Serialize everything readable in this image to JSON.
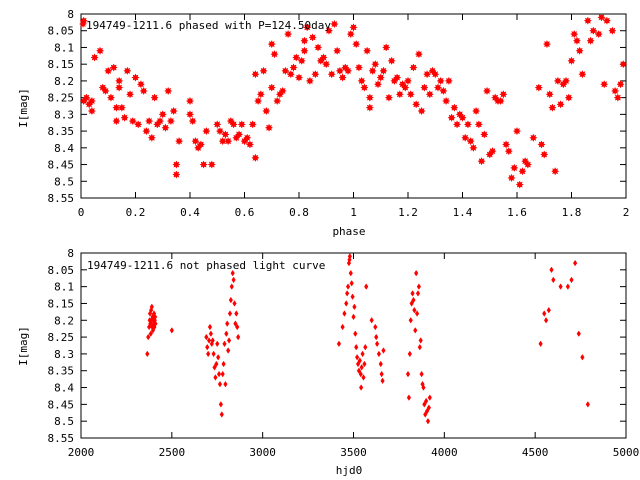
{
  "colors": {
    "data": "#ff0000",
    "axis": "#000000",
    "background": "#ffffff"
  },
  "chart_data": [
    {
      "type": "scatter",
      "title": "194749-1211.6 phased with P=124.50day",
      "xlabel": "phase",
      "ylabel": "I[mag]",
      "xlim": [
        0,
        2
      ],
      "ylim": [
        8.55,
        8.0
      ],
      "y_inverted": true,
      "grid": false,
      "legend": "none",
      "marker": "star",
      "x_ticks": [
        "0",
        "0.2",
        "0.4",
        "0.6",
        "0.8",
        "1",
        "1.2",
        "1.4",
        "1.6",
        "1.8",
        "2"
      ],
      "y_ticks": [
        "8",
        "8.05",
        "8.1",
        "8.15",
        "8.2",
        "8.25",
        "8.3",
        "8.35",
        "8.4",
        "8.45",
        "8.5",
        "8.55"
      ],
      "points": [
        [
          0.01,
          8.02
        ],
        [
          0.01,
          8.26
        ],
        [
          0.02,
          8.25
        ],
        [
          0.03,
          8.27
        ],
        [
          0.04,
          8.26
        ],
        [
          0.04,
          8.29
        ],
        [
          0.05,
          8.13
        ],
        [
          0.07,
          8.11
        ],
        [
          0.08,
          8.22
        ],
        [
          0.09,
          8.23
        ],
        [
          0.1,
          8.17
        ],
        [
          0.11,
          8.25
        ],
        [
          0.12,
          8.16
        ],
        [
          0.13,
          8.28
        ],
        [
          0.13,
          8.32
        ],
        [
          0.14,
          8.22
        ],
        [
          0.14,
          8.2
        ],
        [
          0.15,
          8.28
        ],
        [
          0.16,
          8.31
        ],
        [
          0.17,
          8.17
        ],
        [
          0.18,
          8.24
        ],
        [
          0.19,
          8.32
        ],
        [
          0.2,
          8.19
        ],
        [
          0.21,
          8.33
        ],
        [
          0.22,
          8.21
        ],
        [
          0.23,
          8.23
        ],
        [
          0.24,
          8.35
        ],
        [
          0.25,
          8.32
        ],
        [
          0.26,
          8.37
        ],
        [
          0.27,
          8.25
        ],
        [
          0.28,
          8.33
        ],
        [
          0.29,
          8.32
        ],
        [
          0.3,
          8.3
        ],
        [
          0.31,
          8.34
        ],
        [
          0.32,
          8.23
        ],
        [
          0.33,
          8.32
        ],
        [
          0.34,
          8.29
        ],
        [
          0.35,
          8.45
        ],
        [
          0.35,
          8.48
        ],
        [
          0.36,
          8.38
        ],
        [
          0.4,
          8.26
        ],
        [
          0.4,
          8.3
        ],
        [
          0.41,
          8.32
        ],
        [
          0.42,
          8.38
        ],
        [
          0.43,
          8.4
        ],
        [
          0.44,
          8.39
        ],
        [
          0.45,
          8.45
        ],
        [
          0.46,
          8.35
        ],
        [
          0.48,
          8.45
        ],
        [
          0.5,
          8.33
        ],
        [
          0.51,
          8.35
        ],
        [
          0.52,
          8.38
        ],
        [
          0.53,
          8.36
        ],
        [
          0.54,
          8.38
        ],
        [
          0.55,
          8.32
        ],
        [
          0.56,
          8.33
        ],
        [
          0.57,
          8.37
        ],
        [
          0.58,
          8.36
        ],
        [
          0.59,
          8.33
        ],
        [
          0.6,
          8.38
        ],
        [
          0.61,
          8.37
        ],
        [
          0.62,
          8.39
        ],
        [
          0.63,
          8.33
        ],
        [
          0.64,
          8.43
        ],
        [
          0.64,
          8.18
        ],
        [
          0.65,
          8.26
        ],
        [
          0.66,
          8.24
        ],
        [
          0.67,
          8.17
        ],
        [
          0.68,
          8.29
        ],
        [
          0.69,
          8.34
        ],
        [
          0.7,
          8.22
        ],
        [
          0.7,
          8.09
        ],
        [
          0.71,
          8.12
        ],
        [
          0.72,
          8.26
        ],
        [
          0.73,
          8.24
        ],
        [
          0.74,
          8.23
        ],
        [
          0.75,
          8.17
        ],
        [
          0.76,
          8.06
        ],
        [
          0.77,
          8.18
        ],
        [
          0.78,
          8.16
        ],
        [
          0.79,
          8.13
        ],
        [
          0.8,
          8.19
        ],
        [
          0.81,
          8.14
        ],
        [
          0.82,
          8.08
        ],
        [
          0.82,
          8.11
        ],
        [
          0.83,
          8.04
        ],
        [
          0.84,
          8.2
        ],
        [
          0.85,
          8.07
        ],
        [
          0.86,
          8.18
        ],
        [
          0.87,
          8.1
        ],
        [
          0.88,
          8.14
        ],
        [
          0.89,
          8.13
        ],
        [
          0.9,
          8.15
        ],
        [
          0.91,
          8.05
        ],
        [
          0.92,
          8.18
        ],
        [
          0.93,
          8.03
        ],
        [
          0.94,
          8.11
        ],
        [
          0.95,
          8.17
        ],
        [
          0.96,
          8.19
        ],
        [
          0.97,
          8.16
        ],
        [
          0.98,
          8.17
        ],
        [
          0.99,
          8.06
        ],
        [
          1.0,
          8.04
        ],
        [
          1.01,
          8.09
        ],
        [
          1.02,
          8.16
        ],
        [
          1.03,
          8.2
        ],
        [
          1.04,
          8.22
        ],
        [
          1.05,
          8.11
        ],
        [
          1.06,
          8.25
        ],
        [
          1.06,
          8.28
        ],
        [
          1.07,
          8.17
        ],
        [
          1.08,
          8.15
        ],
        [
          1.09,
          8.21
        ],
        [
          1.1,
          8.19
        ],
        [
          1.11,
          8.17
        ],
        [
          1.12,
          8.1
        ],
        [
          1.13,
          8.25
        ],
        [
          1.14,
          8.14
        ],
        [
          1.15,
          8.2
        ],
        [
          1.16,
          8.19
        ],
        [
          1.17,
          8.24
        ],
        [
          1.18,
          8.21
        ],
        [
          1.19,
          8.22
        ],
        [
          1.2,
          8.2
        ],
        [
          1.21,
          8.24
        ],
        [
          1.22,
          8.16
        ],
        [
          1.23,
          8.27
        ],
        [
          1.24,
          8.12
        ],
        [
          1.25,
          8.29
        ],
        [
          1.26,
          8.22
        ],
        [
          1.27,
          8.18
        ],
        [
          1.28,
          8.24
        ],
        [
          1.29,
          8.17
        ],
        [
          1.3,
          8.18
        ],
        [
          1.31,
          8.22
        ],
        [
          1.32,
          8.2
        ],
        [
          1.33,
          8.23
        ],
        [
          1.34,
          8.26
        ],
        [
          1.35,
          8.2
        ],
        [
          1.36,
          8.31
        ],
        [
          1.37,
          8.28
        ],
        [
          1.38,
          8.33
        ],
        [
          1.39,
          8.3
        ],
        [
          1.4,
          8.31
        ],
        [
          1.41,
          8.37
        ],
        [
          1.42,
          8.33
        ],
        [
          1.43,
          8.38
        ],
        [
          1.44,
          8.4
        ],
        [
          1.45,
          8.29
        ],
        [
          1.46,
          8.33
        ],
        [
          1.47,
          8.44
        ],
        [
          1.48,
          8.36
        ],
        [
          1.49,
          8.23
        ],
        [
          1.5,
          8.42
        ],
        [
          1.51,
          8.41
        ],
        [
          1.52,
          8.25
        ],
        [
          1.53,
          8.26
        ],
        [
          1.54,
          8.26
        ],
        [
          1.55,
          8.24
        ],
        [
          1.56,
          8.39
        ],
        [
          1.57,
          8.41
        ],
        [
          1.58,
          8.49
        ],
        [
          1.59,
          8.46
        ],
        [
          1.6,
          8.35
        ],
        [
          1.61,
          8.51
        ],
        [
          1.62,
          8.47
        ],
        [
          1.63,
          8.44
        ],
        [
          1.64,
          8.45
        ],
        [
          1.66,
          8.37
        ],
        [
          1.68,
          8.22
        ],
        [
          1.69,
          8.39
        ],
        [
          1.7,
          8.42
        ],
        [
          1.71,
          8.09
        ],
        [
          1.72,
          8.24
        ],
        [
          1.73,
          8.28
        ],
        [
          1.74,
          8.47
        ],
        [
          1.75,
          8.2
        ],
        [
          1.76,
          8.27
        ],
        [
          1.77,
          8.21
        ],
        [
          1.78,
          8.2
        ],
        [
          1.79,
          8.25
        ],
        [
          1.8,
          8.14
        ],
        [
          1.81,
          8.06
        ],
        [
          1.82,
          8.08
        ],
        [
          1.83,
          8.11
        ],
        [
          1.84,
          8.18
        ],
        [
          1.86,
          8.02
        ],
        [
          1.87,
          8.08
        ],
        [
          1.88,
          8.05
        ],
        [
          1.9,
          8.06
        ],
        [
          1.91,
          8.01
        ],
        [
          1.92,
          8.21
        ],
        [
          1.93,
          8.02
        ],
        [
          1.95,
          8.05
        ],
        [
          1.96,
          8.23
        ],
        [
          1.97,
          8.25
        ],
        [
          1.98,
          8.21
        ],
        [
          1.99,
          8.15
        ]
      ]
    },
    {
      "type": "scatter",
      "title": "194749-1211.6 not phased light curve",
      "xlabel": "hjd0",
      "ylabel": "I[mag]",
      "xlim": [
        2000,
        5000
      ],
      "ylim": [
        8.55,
        8.0
      ],
      "y_inverted": true,
      "grid": false,
      "legend": "none",
      "marker": "diamond",
      "x_ticks": [
        "2000",
        "2500",
        "3000",
        "3500",
        "4000",
        "4500",
        "5000"
      ],
      "y_ticks": [
        "8",
        "8.05",
        "8.1",
        "8.15",
        "8.2",
        "8.25",
        "8.3",
        "8.35",
        "8.4",
        "8.45",
        "8.5",
        "8.55"
      ],
      "points": [
        [
          2365,
          8.3
        ],
        [
          2370,
          8.25
        ],
        [
          2375,
          8.22
        ],
        [
          2378,
          8.2
        ],
        [
          2380,
          8.18
        ],
        [
          2382,
          8.21
        ],
        [
          2384,
          8.24
        ],
        [
          2386,
          8.17
        ],
        [
          2388,
          8.2
        ],
        [
          2390,
          8.16
        ],
        [
          2392,
          8.22
        ],
        [
          2394,
          8.19
        ],
        [
          2396,
          8.23
        ],
        [
          2398,
          8.2
        ],
        [
          2400,
          8.21
        ],
        [
          2402,
          8.18
        ],
        [
          2404,
          8.22
        ],
        [
          2406,
          8.2
        ],
        [
          2408,
          8.19
        ],
        [
          2410,
          8.21
        ],
        [
          2500,
          8.23
        ],
        [
          2690,
          8.25
        ],
        [
          2695,
          8.28
        ],
        [
          2700,
          8.3
        ],
        [
          2705,
          8.26
        ],
        [
          2710,
          8.22
        ],
        [
          2715,
          8.24
        ],
        [
          2720,
          8.27
        ],
        [
          2725,
          8.26
        ],
        [
          2730,
          8.3
        ],
        [
          2735,
          8.34
        ],
        [
          2740,
          8.37
        ],
        [
          2745,
          8.33
        ],
        [
          2750,
          8.27
        ],
        [
          2755,
          8.31
        ],
        [
          2760,
          8.36
        ],
        [
          2765,
          8.39
        ],
        [
          2770,
          8.45
        ],
        [
          2775,
          8.48
        ],
        [
          2780,
          8.36
        ],
        [
          2785,
          8.33
        ],
        [
          2790,
          8.27
        ],
        [
          2795,
          8.39
        ],
        [
          2800,
          8.24
        ],
        [
          2805,
          8.21
        ],
        [
          2810,
          8.29
        ],
        [
          2815,
          8.26
        ],
        [
          2820,
          8.18
        ],
        [
          2825,
          8.14
        ],
        [
          2830,
          8.1
        ],
        [
          2835,
          8.06
        ],
        [
          2840,
          8.08
        ],
        [
          2845,
          8.15
        ],
        [
          2850,
          8.21
        ],
        [
          2855,
          8.18
        ],
        [
          2860,
          8.22
        ],
        [
          2865,
          8.25
        ],
        [
          3420,
          8.27
        ],
        [
          3440,
          8.22
        ],
        [
          3450,
          8.18
        ],
        [
          3460,
          8.15
        ],
        [
          3465,
          8.12
        ],
        [
          3470,
          8.1
        ],
        [
          3475,
          8.03
        ],
        [
          3478,
          8.02
        ],
        [
          3480,
          8.01
        ],
        [
          3485,
          8.06
        ],
        [
          3490,
          8.09
        ],
        [
          3495,
          8.13
        ],
        [
          3500,
          8.19
        ],
        [
          3505,
          8.16
        ],
        [
          3510,
          8.24
        ],
        [
          3515,
          8.28
        ],
        [
          3520,
          8.31
        ],
        [
          3525,
          8.33
        ],
        [
          3530,
          8.35
        ],
        [
          3535,
          8.32
        ],
        [
          3540,
          8.36
        ],
        [
          3542,
          8.4
        ],
        [
          3545,
          8.34
        ],
        [
          3550,
          8.3
        ],
        [
          3555,
          8.37
        ],
        [
          3560,
          8.33
        ],
        [
          3565,
          8.28
        ],
        [
          3570,
          8.1
        ],
        [
          3600,
          8.2
        ],
        [
          3620,
          8.22
        ],
        [
          3625,
          8.25
        ],
        [
          3630,
          8.27
        ],
        [
          3640,
          8.3
        ],
        [
          3650,
          8.33
        ],
        [
          3655,
          8.36
        ],
        [
          3660,
          8.38
        ],
        [
          3665,
          8.29
        ],
        [
          3800,
          8.36
        ],
        [
          3805,
          8.43
        ],
        [
          3810,
          8.3
        ],
        [
          3815,
          8.2
        ],
        [
          3820,
          8.15
        ],
        [
          3825,
          8.12
        ],
        [
          3830,
          8.14
        ],
        [
          3835,
          8.17
        ],
        [
          3840,
          8.23
        ],
        [
          3845,
          8.06
        ],
        [
          3850,
          8.18
        ],
        [
          3855,
          8.12
        ],
        [
          3860,
          8.1
        ],
        [
          3865,
          8.28
        ],
        [
          3870,
          8.26
        ],
        [
          3875,
          8.36
        ],
        [
          3880,
          8.39
        ],
        [
          3885,
          8.4
        ],
        [
          3890,
          8.45
        ],
        [
          3895,
          8.48
        ],
        [
          3900,
          8.44
        ],
        [
          3905,
          8.47
        ],
        [
          3910,
          8.5
        ],
        [
          3915,
          8.46
        ],
        [
          3920,
          8.43
        ],
        [
          4530,
          8.27
        ],
        [
          4550,
          8.18
        ],
        [
          4560,
          8.2
        ],
        [
          4575,
          8.17
        ],
        [
          4590,
          8.05
        ],
        [
          4600,
          8.08
        ],
        [
          4640,
          8.1
        ],
        [
          4680,
          8.1
        ],
        [
          4700,
          8.08
        ],
        [
          4720,
          8.03
        ],
        [
          4740,
          8.24
        ],
        [
          4760,
          8.31
        ],
        [
          4790,
          8.45
        ]
      ]
    }
  ]
}
